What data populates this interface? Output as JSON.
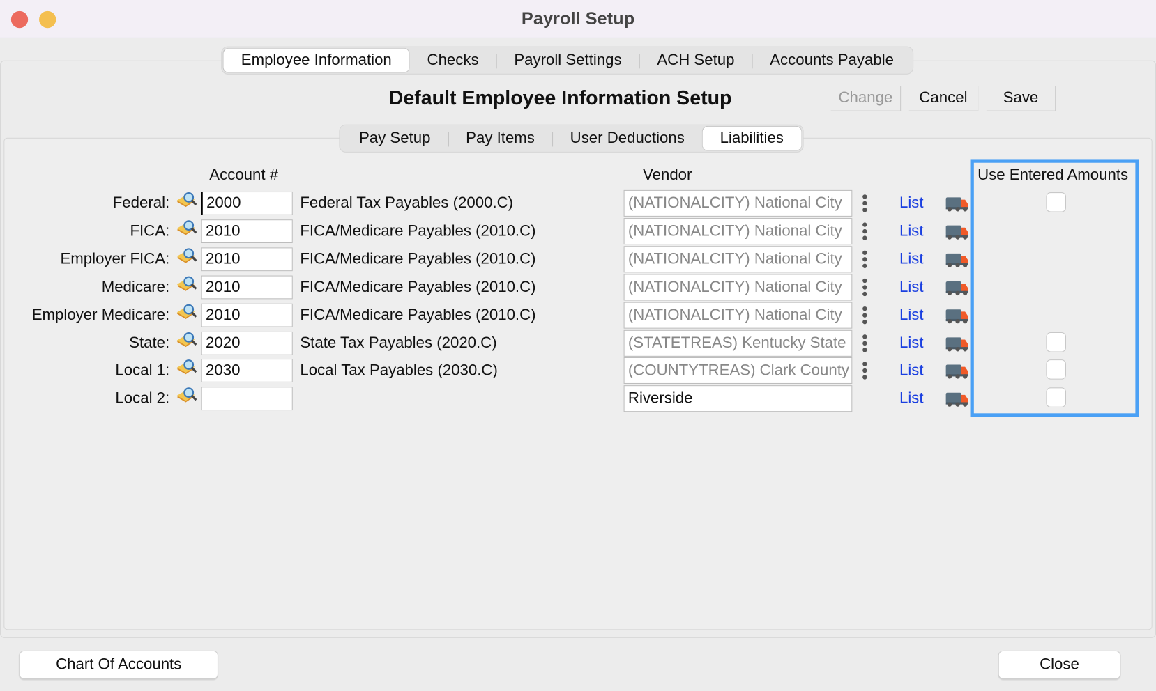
{
  "window": {
    "title": "Payroll Setup"
  },
  "main_tabs": [
    {
      "label": "Employee Information",
      "selected": true
    },
    {
      "label": "Checks"
    },
    {
      "label": "Payroll Settings"
    },
    {
      "label": "ACH Setup"
    },
    {
      "label": "Accounts Payable"
    }
  ],
  "heading": "Default Employee Information Setup",
  "toolbar": {
    "change": "Change",
    "cancel": "Cancel",
    "save": "Save"
  },
  "sub_tabs": [
    {
      "label": "Pay Setup"
    },
    {
      "label": "Pay Items"
    },
    {
      "label": "User Deductions"
    },
    {
      "label": "Liabilities",
      "selected": true
    }
  ],
  "columns": {
    "account": "Account #",
    "vendor": "Vendor",
    "use_entered": "Use Entered Amounts"
  },
  "list_label": "List",
  "rows": [
    {
      "label": "Federal:",
      "account": "2000",
      "description": "Federal Tax Payables (2000.C)",
      "vendor": "(NATIONALCITY) National City",
      "checkbox": true,
      "checked": false
    },
    {
      "label": "FICA:",
      "account": "2010",
      "description": "FICA/Medicare Payables (2010.C)",
      "vendor": "(NATIONALCITY) National City",
      "checkbox": false
    },
    {
      "label": "Employer FICA:",
      "account": "2010",
      "description": "FICA/Medicare Payables (2010.C)",
      "vendor": "(NATIONALCITY) National City",
      "checkbox": false
    },
    {
      "label": "Medicare:",
      "account": "2010",
      "description": "FICA/Medicare Payables (2010.C)",
      "vendor": "(NATIONALCITY) National City",
      "checkbox": false
    },
    {
      "label": "Employer Medicare:",
      "account": "2010",
      "description": "FICA/Medicare Payables (2010.C)",
      "vendor": "(NATIONALCITY) National City",
      "checkbox": false
    },
    {
      "label": "State:",
      "account": "2020",
      "description": "State Tax Payables (2020.C)",
      "vendor": "(STATETREAS) Kentucky State",
      "checkbox": true,
      "checked": false
    },
    {
      "label": "Local 1:",
      "account": "2030",
      "description": "Local Tax Payables (2030.C)",
      "vendor": "(COUNTYTREAS) Clark County",
      "checkbox": true,
      "checked": false
    },
    {
      "label": "Local 2:",
      "account": "",
      "description": "",
      "vendor": "Riverside",
      "vendor_editable": true,
      "checkbox": true,
      "checked": false
    }
  ],
  "footer": {
    "chart_of_accounts": "Chart Of Accounts",
    "close": "Close"
  },
  "colors": {
    "focus_ring": "#4aa0f5",
    "link": "#1a3fe0",
    "close_light": "#ec6a5e",
    "minimize_light": "#f4bf4f"
  }
}
